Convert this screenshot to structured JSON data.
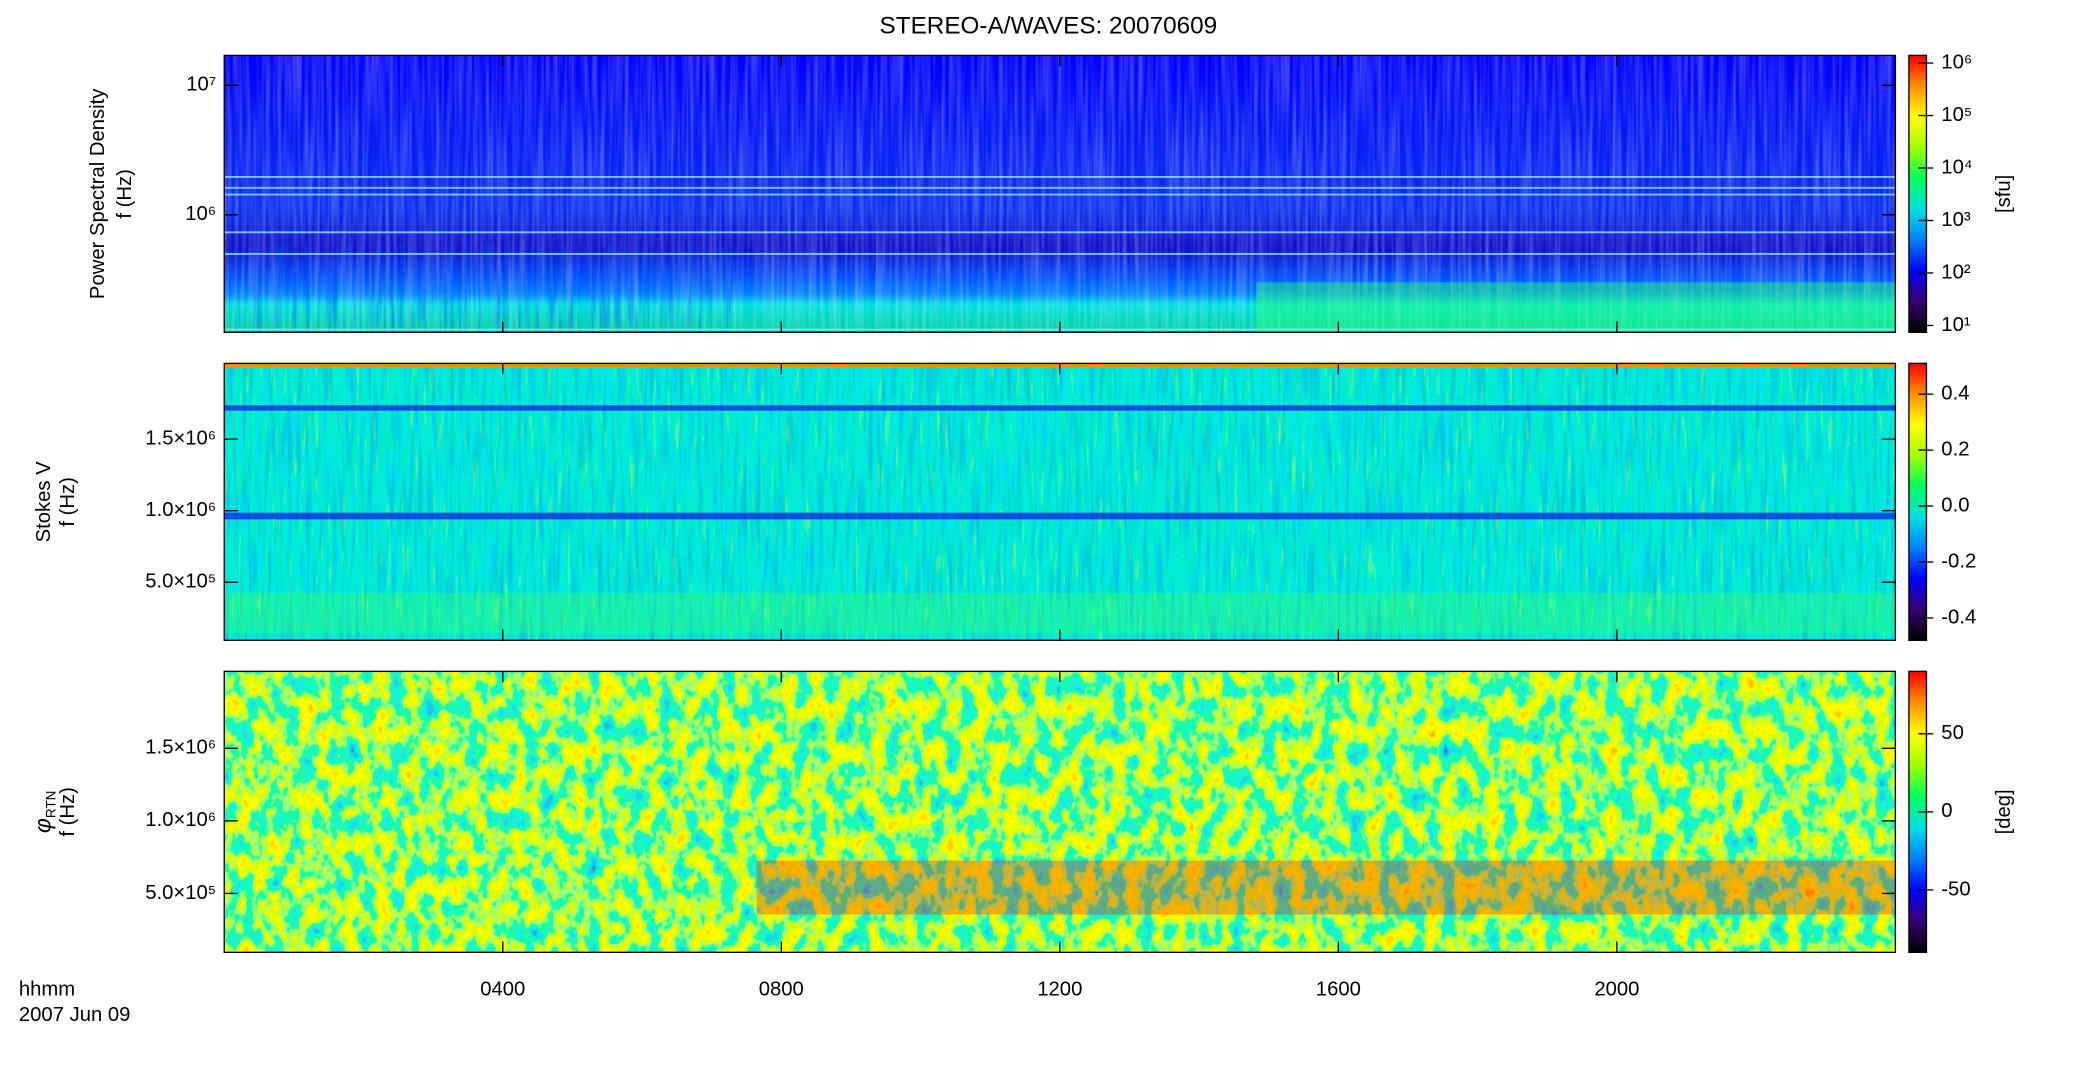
{
  "chart_data": [
    {
      "type": "heatmap",
      "title": "STEREO-A/WAVES: 20070609",
      "ylabel": [
        "Power Spectral Density",
        "f (Hz)"
      ],
      "log_y": true,
      "ylim": [
        124000,
        17000000
      ],
      "yticks": [
        {
          "value": 1000000,
          "label": "10⁶"
        },
        {
          "value": 10000000,
          "label": "10⁷"
        }
      ],
      "log_c": true,
      "clim": [
        7.4,
        1400000
      ],
      "cticks": [
        {
          "value": 10,
          "label": "10¹"
        },
        {
          "value": 100,
          "label": "10²"
        },
        {
          "value": 1000,
          "label": "10³"
        },
        {
          "value": 10000,
          "label": "10⁴"
        },
        {
          "value": 100000,
          "label": "10⁵"
        },
        {
          "value": 1000000,
          "label": "10⁶"
        }
      ],
      "clabel": "[sfu]",
      "colormap": [
        "#000000",
        "#3a0070",
        "#0000ff",
        "#0080ff",
        "#00e0e0",
        "#00ff60",
        "#a0ff00",
        "#ffff00",
        "#ff9000",
        "#ff0000"
      ]
    },
    {
      "type": "heatmap",
      "ylabel": [
        "Stokes V",
        "f (Hz)"
      ],
      "log_y": false,
      "ylim": [
        94000,
        2030000
      ],
      "yticks": [
        {
          "value": 500000,
          "label": "5.0×10⁵"
        },
        {
          "value": 1000000,
          "label": "1.0×10⁶"
        },
        {
          "value": 1500000,
          "label": "1.5×10⁶"
        }
      ],
      "log_c": false,
      "clim": [
        -0.48,
        0.51
      ],
      "cticks": [
        -0.4,
        -0.2,
        {
          "value": 0,
          "label": "0.0"
        },
        0.2,
        0.4
      ],
      "colormap": [
        "#000000",
        "#3a0070",
        "#0000ff",
        "#0080ff",
        "#00e0e0",
        "#00ff60",
        "#a0ff00",
        "#ffff00",
        "#ff9000",
        "#ff0000"
      ]
    },
    {
      "type": "heatmap",
      "ylabel": [
        {
          "symbol": "φ",
          "subscript": "RTN"
        },
        "f (Hz)"
      ],
      "log_y": false,
      "ylim": [
        94000,
        2030000
      ],
      "yticks": [
        {
          "value": 500000,
          "label": "5.0×10⁵"
        },
        {
          "value": 1000000,
          "label": "1.0×10⁶"
        },
        {
          "value": 1500000,
          "label": "1.5×10⁶"
        }
      ],
      "log_c": false,
      "clim": [
        -90,
        90
      ],
      "cticks": [
        -50,
        0,
        50
      ],
      "clabel": "[deg]",
      "colormap": [
        "#000000",
        "#3a0070",
        "#0000ff",
        "#0080ff",
        "#00e0e0",
        "#00ff60",
        "#a0ff00",
        "#ffff00",
        "#ff9000",
        "#ff0000"
      ],
      "xlim": [
        0,
        24
      ],
      "xticks": [
        {
          "value": 4,
          "label": "0400"
        },
        {
          "value": 8,
          "label": "0800"
        },
        {
          "value": 12,
          "label": "1200"
        },
        {
          "value": 16,
          "label": "1600"
        },
        {
          "value": 20,
          "label": "2000"
        }
      ],
      "xlabel": "hhmm",
      "date": "2007 Jun 09"
    }
  ]
}
